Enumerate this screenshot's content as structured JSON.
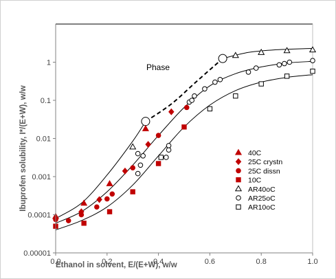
{
  "chart_data": {
    "type": "scatter",
    "title": "",
    "xlabel": "Ethanol in solvent, E/(E+W), w/w",
    "ylabel": "Ibuprofen solubility, I*/(E+W), w/w",
    "xlim": [
      0,
      1
    ],
    "ylim": [
      1e-05,
      10
    ],
    "y_scale": "log",
    "grid": false,
    "legend_position": "right-center",
    "x_ticks": [
      "0.0",
      "0.2",
      "0.4",
      "0.6",
      "0.8",
      "1.0"
    ],
    "y_ticks": [
      "0.00001",
      "0.0001",
      "0.001",
      "0.01",
      "0.1",
      "1"
    ],
    "annotation": "Phase",
    "series": [
      {
        "name": "40C",
        "marker": "triangle-filled",
        "color": "#c00000",
        "x": [
          0.0,
          0.11,
          0.21,
          0.35
        ],
        "y": [
          9e-05,
          0.0002,
          0.00065,
          0.018
        ]
      },
      {
        "name": "25C crystn",
        "marker": "diamond-filled",
        "color": "#c00000",
        "x": [
          0.0,
          0.1,
          0.17,
          0.27,
          0.36,
          0.45
        ],
        "y": [
          8e-05,
          0.00012,
          0.00025,
          0.0014,
          0.007,
          0.05
        ]
      },
      {
        "name": "25C dissn",
        "marker": "circle-filled",
        "color": "#c00000",
        "x": [
          0.0,
          0.05,
          0.1,
          0.16,
          0.2,
          0.22,
          0.3,
          0.4,
          0.51
        ],
        "y": [
          7.5e-05,
          7e-05,
          0.0001,
          0.00016,
          0.00026,
          0.00035,
          0.0017,
          0.012,
          0.065
        ]
      },
      {
        "name": "10C",
        "marker": "square-filled",
        "color": "#c00000",
        "x": [
          0.0,
          0.11,
          0.21,
          0.3,
          0.4,
          0.5
        ],
        "y": [
          5e-05,
          6e-05,
          0.00012,
          0.0004,
          0.0022,
          0.02
        ]
      },
      {
        "name": "AR40oC",
        "marker": "triangle-open",
        "color": "#000000",
        "x": [
          0.3,
          0.7,
          0.8,
          0.9,
          1.0
        ],
        "y": [
          0.006,
          1.5,
          1.8,
          2.0,
          2.1
        ]
      },
      {
        "name": "AR25oC",
        "marker": "circle-open",
        "color": "#000000",
        "x": [
          0.32,
          0.33,
          0.34,
          0.32,
          0.43,
          0.44,
          0.44,
          0.52,
          0.53,
          0.54,
          0.58,
          0.62,
          0.64,
          0.75,
          0.78,
          0.87,
          0.89,
          0.91,
          1.0
        ],
        "y": [
          0.0012,
          0.002,
          0.0035,
          0.004,
          0.0032,
          0.005,
          0.0065,
          0.09,
          0.1,
          0.13,
          0.2,
          0.3,
          0.35,
          0.55,
          0.7,
          0.85,
          0.92,
          1.0,
          1.1
        ]
      },
      {
        "name": "AR10oC",
        "marker": "square-open",
        "color": "#000000",
        "x": [
          0.41,
          0.6,
          0.7,
          0.8,
          0.9,
          1.0
        ],
        "y": [
          0.0032,
          0.06,
          0.13,
          0.27,
          0.43,
          0.58
        ]
      }
    ],
    "fit_curves": [
      {
        "label": "40C fit",
        "x": [
          0.0,
          0.1,
          0.2,
          0.3,
          0.35
        ],
        "y": [
          8e-05,
          0.0002,
          0.0011,
          0.0085,
          0.028
        ]
      },
      {
        "label": "phase boundary",
        "style": "dashed",
        "x": [
          0.35,
          0.45,
          0.55,
          0.65
        ],
        "y": [
          0.028,
          0.08,
          0.32,
          1.25
        ]
      },
      {
        "label": "40C upper fit",
        "x": [
          0.65,
          0.75,
          0.85,
          1.0
        ],
        "y": [
          1.25,
          1.8,
          2.1,
          2.3
        ]
      },
      {
        "label": "25C fit",
        "x": [
          0.0,
          0.1,
          0.2,
          0.3,
          0.4,
          0.5,
          0.6,
          0.7,
          0.8,
          0.9,
          1.0
        ],
        "y": [
          6e-05,
          0.00012,
          0.0004,
          0.002,
          0.012,
          0.065,
          0.24,
          0.5,
          0.75,
          0.95,
          1.05
        ]
      },
      {
        "label": "10C fit",
        "x": [
          0.0,
          0.1,
          0.2,
          0.3,
          0.4,
          0.5,
          0.6,
          0.7,
          0.8,
          0.9,
          1.0
        ],
        "y": [
          4e-05,
          7e-05,
          0.00016,
          0.0006,
          0.0035,
          0.02,
          0.075,
          0.18,
          0.3,
          0.4,
          0.47
        ]
      }
    ]
  }
}
